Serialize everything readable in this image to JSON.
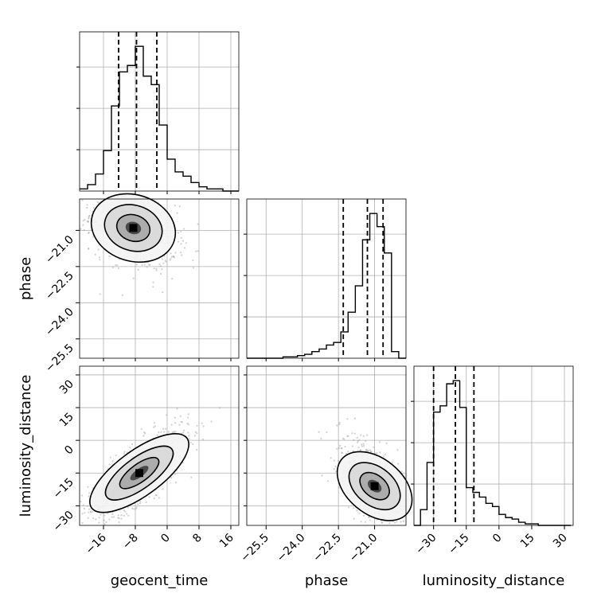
{
  "chart_data": {
    "type": "corner",
    "parameters": [
      "geocent_time",
      "phase",
      "luminosity_distance"
    ],
    "ranges": {
      "geocent_time": [
        -22,
        18
      ],
      "phase": [
        -26.3,
        -19.7
      ],
      "luminosity_distance": [
        -39,
        34
      ]
    },
    "ticks": {
      "geocent_time": [
        -16,
        -8,
        0,
        8,
        16
      ],
      "phase": [
        -25.5,
        -24.0,
        -22.5,
        -21.0
      ],
      "luminosity_distance": [
        -30,
        -15,
        0,
        15,
        30
      ]
    },
    "tick_labels": {
      "geocent_time": [
        "−16",
        "−8",
        "0",
        "8",
        "16"
      ],
      "phase": [
        "−25.5",
        "−24.0",
        "−22.5",
        "−21.0"
      ],
      "luminosity_distance": [
        "−30",
        "−15",
        "0",
        "15",
        "30"
      ]
    },
    "histograms": [
      {
        "param": "geocent_time",
        "bin_edges": [
          -22,
          -20,
          -18,
          -16,
          -14,
          -12,
          -10,
          -8,
          -6,
          -4,
          -2,
          0,
          2,
          4,
          6,
          8,
          10,
          12,
          14,
          16,
          18
        ],
        "counts": [
          1,
          3,
          8,
          19,
          40,
          56,
          59,
          68,
          54,
          50,
          31,
          15,
          9,
          7,
          4,
          2,
          1,
          1,
          0,
          0
        ],
        "quantiles": [
          -12.2,
          -7.7,
          -2.6
        ]
      },
      {
        "param": "phase",
        "bin_edges": [
          -26.3,
          -26.0,
          -25.7,
          -25.4,
          -25.1,
          -24.8,
          -24.5,
          -24.2,
          -23.9,
          -23.6,
          -23.3,
          -23.0,
          -22.7,
          -22.4,
          -22.1,
          -21.8,
          -21.5,
          -21.2,
          -20.9,
          -20.6,
          -20.3,
          -20.0,
          -19.7
        ],
        "counts": [
          0,
          0,
          0,
          0,
          0,
          1,
          1,
          2,
          3,
          5,
          7,
          10,
          12,
          20,
          35,
          55,
          90,
          110,
          100,
          80,
          5,
          0
        ],
        "quantiles": [
          -22.3,
          -21.3,
          -20.65
        ]
      },
      {
        "param": "luminosity_distance",
        "bin_edges": [
          -39,
          -36,
          -33,
          -30,
          -27,
          -24,
          -21,
          -18,
          -15,
          -12,
          -9,
          -6,
          -3,
          0,
          3,
          6,
          9,
          12,
          15,
          18,
          21,
          24,
          27,
          30,
          33
        ],
        "counts": [
          0,
          10,
          40,
          72,
          76,
          90,
          92,
          75,
          24,
          21,
          18,
          14,
          12,
          7,
          5,
          4,
          2,
          1,
          1,
          0,
          0,
          0,
          0,
          0
        ],
        "quantiles": [
          -30,
          -20,
          -11.5
        ]
      }
    ],
    "scatter_panels": [
      {
        "x": "geocent_time",
        "y": "phase",
        "center": [
          -8.5,
          -20.9
        ],
        "spread": [
          6,
          0.9
        ],
        "correlation": -0.35
      },
      {
        "x": "geocent_time",
        "y": "luminosity_distance",
        "center": [
          -7,
          -15
        ],
        "spread": [
          7,
          12
        ],
        "correlation": 0.78
      },
      {
        "x": "phase",
        "y": "luminosity_distance",
        "center": [
          -21.0,
          -21.0
        ],
        "spread": [
          0.8,
          12
        ],
        "correlation": -0.6
      }
    ],
    "grid": true,
    "x_axis_labels": [
      "geocent_time",
      "phase",
      "luminosity_distance"
    ],
    "y_axis_labels": [
      "phase",
      "luminosity_distance"
    ]
  }
}
